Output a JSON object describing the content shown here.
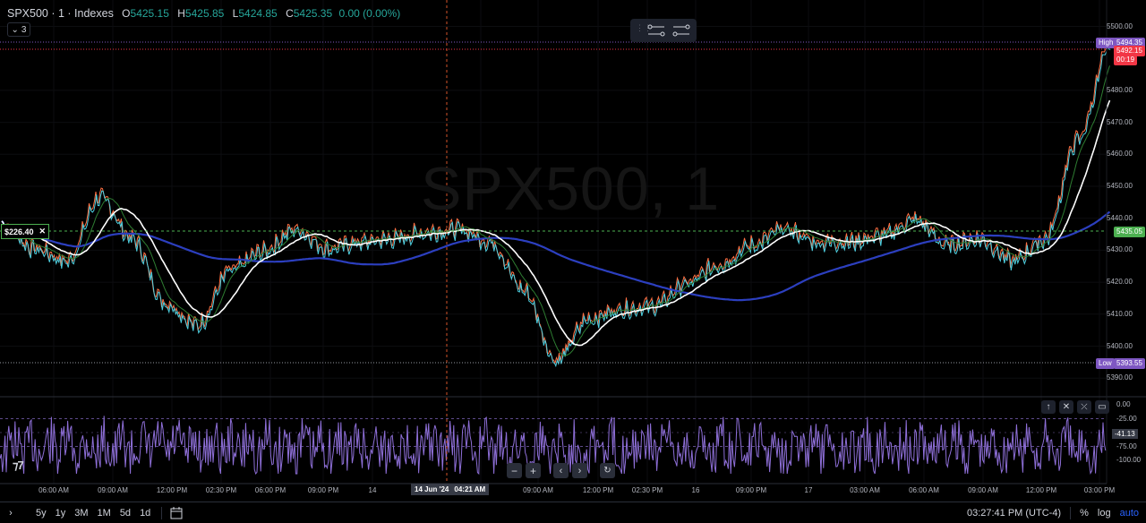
{
  "legend": {
    "symbol": "SPX500 · 1 · Indexes",
    "o_label": "O",
    "o_value": "5425.15",
    "h_label": "H",
    "h_value": "5425.85",
    "l_label": "L",
    "l_value": "5424.85",
    "c_label": "C",
    "c_value": "5425.35",
    "change": "0.00 (0.00%)",
    "collapse_count": "3"
  },
  "watermark": "SPX500, 1",
  "price_axis": {
    "ticks": [
      "5500.00",
      "5480.00",
      "5470.00",
      "5460.00",
      "5450.00",
      "5440.00",
      "5430.00",
      "5420.00",
      "5410.00",
      "5400.00",
      "5390.00"
    ],
    "high_label": "High",
    "high_value": "5494.35",
    "last_value": "5492.15",
    "countdown": "00:19",
    "crosshair_value": "5435.05",
    "low_label": "Low",
    "low_value": "5393.55"
  },
  "left_badge": {
    "value": "$226.40",
    "close_icon": "close-icon"
  },
  "time_axis": {
    "labels": [
      "06:00 AM",
      "09:00 AM",
      "12:00 PM",
      "02:30 PM",
      "06:00 PM",
      "09:00 PM",
      "14",
      "AM",
      "09:00 AM",
      "12:00 PM",
      "02:30 PM",
      "16",
      "09:00 PM",
      "17",
      "03:00 AM",
      "06:00 AM",
      "09:00 AM",
      "12:00 PM",
      "03:00 PM"
    ],
    "crosshair_date": "14 Jun '24",
    "crosshair_time": "04:21 AM"
  },
  "oscillator": {
    "ticks": [
      "0.00",
      "-25.00",
      "-50.00",
      "-75.00",
      "-100.00"
    ],
    "current_value": "-41.13"
  },
  "bottom_bar": {
    "ranges": [
      "5y",
      "1y",
      "3M",
      "1M",
      "5d",
      "1d"
    ],
    "clock": "03:27:41 PM (UTC-4)",
    "percent": "%",
    "log": "log",
    "auto": "auto"
  },
  "colors": {
    "ma_fast": "#ffffff",
    "ma_mid": "#2e7d32",
    "ma_slow": "#2c3fbf",
    "osc": "#8e6fd8",
    "crosshair_h": "#4caf50",
    "last_price": "#f23645",
    "high_tag": "#7e57c2"
  },
  "chart_data": {
    "type": "line",
    "series": [
      {
        "name": "",
        "values": [
          5438,
          5431,
          5427,
          5447,
          5434,
          5414,
          5407,
          5424,
          5430,
          5437,
          5431,
          5433,
          5434,
          5436,
          5437,
          5433,
          5418,
          5396,
          5409,
          5412,
          5413,
          5420,
          5426,
          5432,
          5437,
          5433,
          5433,
          5435,
          5440,
          5432,
          5434,
          5427,
          5434,
          5465,
          5494
        ]
      }
    ]
  }
}
